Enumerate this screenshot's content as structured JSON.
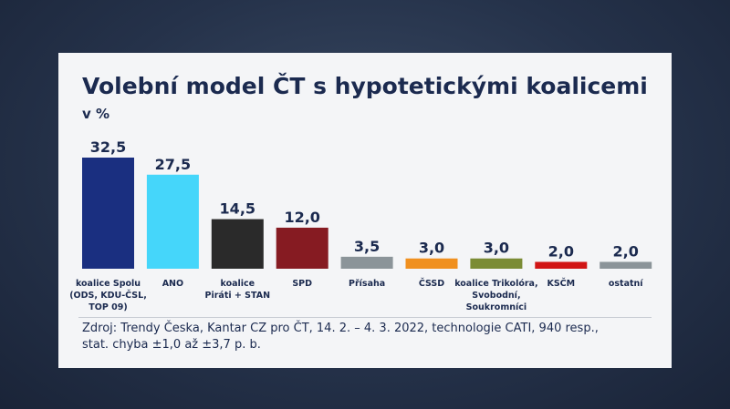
{
  "header": {
    "title": "Volební model ČT s hypotetickými koalicemi",
    "unit": "v %"
  },
  "chart_data": {
    "type": "bar",
    "title": "Volební model ČT s hypotetickými koalicemi",
    "ylabel": "v %",
    "grid": false,
    "ylim": [
      0,
      32.5
    ],
    "categories": [
      [
        "koalice Spolu",
        "(ODS, KDU-ČSL,",
        "TOP 09)"
      ],
      [
        "ANO"
      ],
      [
        "koalice",
        "Piráti + STAN"
      ],
      [
        "SPD"
      ],
      [
        "Přísaha"
      ],
      [
        "ČSSD"
      ],
      [
        "koalice Trikolóra,",
        "Svobodní,",
        "Soukromníci"
      ],
      [
        "KSČM"
      ],
      [
        "ostatní"
      ]
    ],
    "values": [
      32.5,
      27.5,
      14.5,
      12.0,
      3.5,
      3.0,
      3.0,
      2.0,
      2.0
    ],
    "value_labels": [
      "32,5",
      "27,5",
      "14,5",
      "12,0",
      "3,5",
      "3,0",
      "3,0",
      "2,0",
      "2,0"
    ],
    "colors": [
      "#1a2f80",
      "#45d6fa",
      "#2a2a2a",
      "#861b22",
      "#8b9499",
      "#f0901f",
      "#7b8c35",
      "#d11515",
      "#8b9499"
    ]
  },
  "footer": {
    "source_line1": "Zdroj: Trendy Česka, Kantar CZ pro ČT, 14. 2. – 4. 3. 2022, technologie CATI, 940 resp.,",
    "source_line2": "stat. chyba ±1,0 až ±3,7 p. b."
  }
}
